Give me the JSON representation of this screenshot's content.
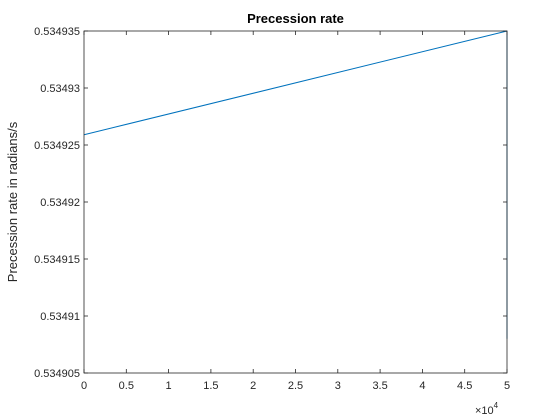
{
  "chart_data": {
    "type": "line",
    "title": "Precession rate",
    "xlabel": "",
    "ylabel": "Precession rate in radians/s",
    "x_multiplier_label": "×10",
    "x_multiplier_exponent": "4",
    "xlim": [
      0,
      5
    ],
    "ylim": [
      0.534905,
      0.534935
    ],
    "x_ticks": [
      0,
      0.5,
      1,
      1.5,
      2,
      2.5,
      3,
      3.5,
      4,
      4.5,
      5
    ],
    "x_tick_labels": [
      "0",
      "0.5",
      "1",
      "1.5",
      "2",
      "2.5",
      "3",
      "3.5",
      "4",
      "4.5",
      "5"
    ],
    "y_ticks": [
      0.534905,
      0.53491,
      0.534915,
      0.53492,
      0.534925,
      0.53493,
      0.534935
    ],
    "y_tick_labels": [
      "0.534905",
      "0.53491",
      "0.534915",
      "0.53492",
      "0.534925",
      "0.53493",
      "0.534935"
    ],
    "grid": false,
    "box": true,
    "series": [
      {
        "color": "#0072bd",
        "x": [
          0,
          5,
          5
        ],
        "y": [
          0.5349259,
          0.534935,
          0.534908
        ]
      }
    ]
  }
}
